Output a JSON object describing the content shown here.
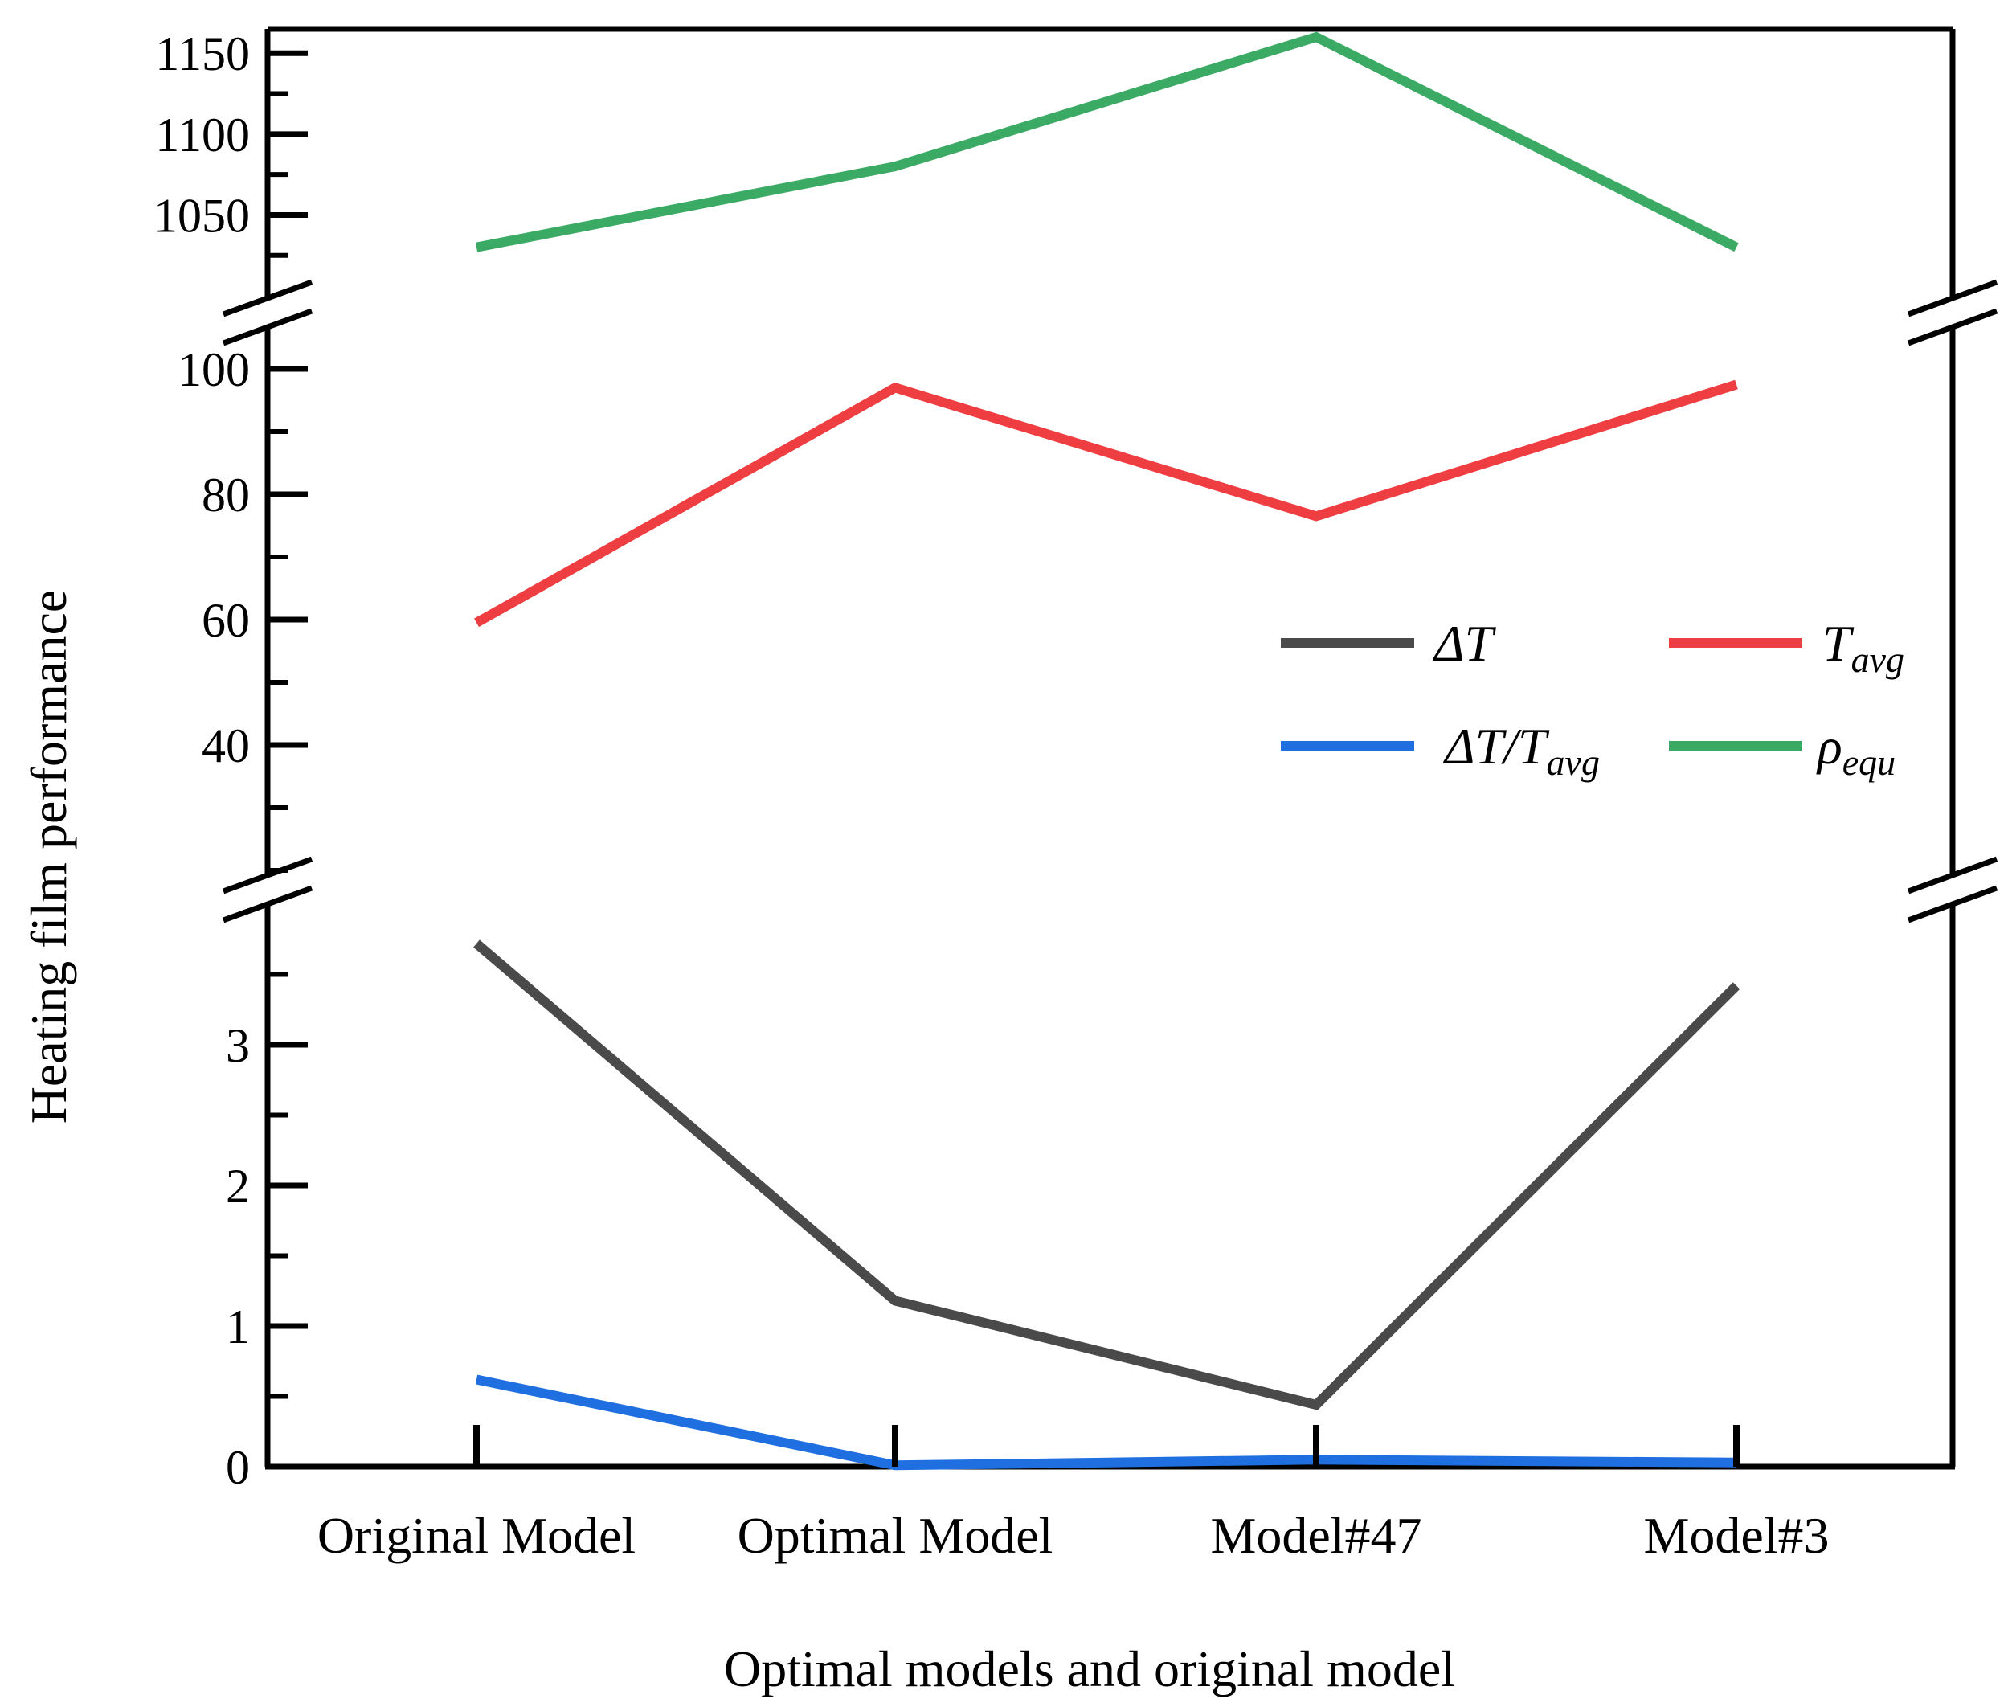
{
  "chart_data": {
    "type": "line",
    "title": "",
    "xlabel": "Optimal models and original model",
    "ylabel": "Heating film performance",
    "categories": [
      "Original Model",
      "Optimal Model",
      "Model#47",
      "Model#3"
    ],
    "broken_y_axis": true,
    "y_segments": [
      {
        "name": "bottom",
        "range": [
          0,
          3.8
        ],
        "ticks": [
          0,
          1,
          2,
          3
        ]
      },
      {
        "name": "middle",
        "range": [
          20,
          105
        ],
        "ticks": [
          40,
          60,
          80,
          100
        ]
      },
      {
        "name": "top",
        "range": [
          1005,
          1165
        ],
        "ticks": [
          1050,
          1100,
          1150
        ]
      }
    ],
    "series": [
      {
        "name": "ΔT",
        "legend_main": "ΔT",
        "legend_sub": "",
        "color": "#4a4a4a",
        "values": [
          3.72,
          1.18,
          0.44,
          3.42
        ]
      },
      {
        "name": "T_avg",
        "legend_main": "T",
        "legend_sub": "avg",
        "color": "#ef3e42",
        "values": [
          59.5,
          97,
          76.5,
          97.5
        ]
      },
      {
        "name": "ΔT/T_avg",
        "legend_main": "ΔT/T",
        "legend_sub": "avg",
        "color": "#1f6fe0",
        "values": [
          0.62,
          0.01,
          0.05,
          0.03
        ]
      },
      {
        "name": "ρ_equ",
        "legend_main": "ρ",
        "legend_sub": "equ",
        "color": "#3aaa64",
        "values": [
          1030,
          1080,
          1160,
          1030
        ]
      }
    ],
    "legend": {
      "placement": "center-right",
      "columns": 2,
      "order": [
        "ΔT",
        "T_avg",
        "ΔT/T_avg",
        "ρ_equ"
      ]
    },
    "grid": false
  }
}
